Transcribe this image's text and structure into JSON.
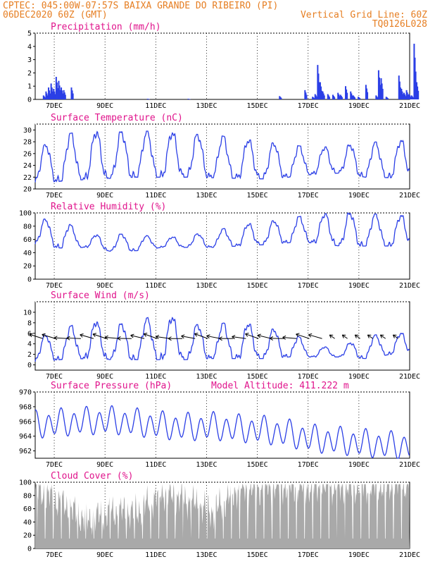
{
  "header": {
    "line1": "CPTEC:   045:00W-07:57S   BAIXA GRANDE DO RIBEIRO (PI)",
    "line2_left": "06DEC2020 60Z (GMT)",
    "line2_right": "Vertical Grid Line: 60Z",
    "line3_right": "TQ0126L028"
  },
  "colors": {
    "header": "#e67e22",
    "panel_title": "#e0148c",
    "series": "#2b3fe6",
    "cloud": "#a9a9a9",
    "grid": "#000000"
  },
  "x_axis": {
    "start": "06DEC 06Z",
    "end": "21DEC 00Z",
    "day_labels": [
      "7DEC",
      "9DEC",
      "11DEC",
      "13DEC",
      "15DEC",
      "17DEC",
      "19DEC",
      "21DEC"
    ]
  },
  "chart_data": [
    {
      "id": "precip",
      "title": "Precipitation (mm/h)",
      "type": "bar",
      "ylim": [
        0,
        5
      ],
      "yticks": [
        0,
        1,
        2,
        3,
        4,
        5
      ],
      "series": [
        {
          "values": [
            [
              0.3,
              0.3
            ],
            [
              0.4,
              0.6
            ],
            [
              0.5,
              0.9
            ],
            [
              0.6,
              1.2
            ],
            [
              0.7,
              0.8
            ],
            [
              0.8,
              1.7
            ],
            [
              0.9,
              1.4
            ],
            [
              1.0,
              0.9
            ],
            [
              1.1,
              0.7
            ],
            [
              1.4,
              0.9
            ],
            [
              4.4,
              0.05
            ],
            [
              6.0,
              0.05
            ],
            [
              9.6,
              0.25
            ],
            [
              10.6,
              0.7
            ],
            [
              10.9,
              0.2
            ],
            [
              11.0,
              0.4
            ],
            [
              11.1,
              2.6
            ],
            [
              11.2,
              1.3
            ],
            [
              11.3,
              0.6
            ],
            [
              11.5,
              0.4
            ],
            [
              11.7,
              0.35
            ],
            [
              11.9,
              0.5
            ],
            [
              12.0,
              0.35
            ],
            [
              12.2,
              1.0
            ],
            [
              12.4,
              0.6
            ],
            [
              12.5,
              0.3
            ],
            [
              12.7,
              0.2
            ],
            [
              13.0,
              1.1
            ],
            [
              13.4,
              0.3
            ],
            [
              13.5,
              2.2
            ],
            [
              13.6,
              1.6
            ],
            [
              13.8,
              0.2
            ],
            [
              14.3,
              1.8
            ],
            [
              14.4,
              0.8
            ],
            [
              14.5,
              0.5
            ],
            [
              14.6,
              0.7
            ],
            [
              14.7,
              0.4
            ],
            [
              14.8,
              0.3
            ],
            [
              14.9,
              4.2
            ],
            [
              15.0,
              1.3
            ]
          ]
        }
      ]
    },
    {
      "id": "temp",
      "title": "Surface Temperature (nC)",
      "type": "line",
      "ylim": [
        20,
        31
      ],
      "yticks": [
        20,
        22,
        24,
        26,
        28,
        30
      ],
      "daily": {
        "min": [
          21.0,
          21.3,
          21.6,
          21.8,
          22.0,
          22.0,
          22.0,
          21.9,
          21.8,
          21.7,
          22.0,
          22.5,
          22.7,
          22.0,
          21.9
        ],
        "max": [
          26.5,
          29.2,
          29.8,
          29.6,
          29.8,
          29.8,
          29.3,
          29.2,
          28.6,
          28.0,
          27.5,
          27.0,
          27.3,
          27.8,
          28.2
        ]
      }
    },
    {
      "id": "rh",
      "title": "Relative Humidity (%)",
      "type": "line",
      "ylim": [
        0,
        100
      ],
      "yticks": [
        0,
        20,
        40,
        60,
        80,
        100
      ],
      "daily": {
        "min": [
          52,
          47,
          48,
          42,
          43,
          48,
          48,
          48,
          50,
          52,
          55,
          55,
          50,
          50,
          50
        ],
        "max": [
          90,
          92,
          66,
          68,
          68,
          62,
          66,
          72,
          82,
          86,
          92,
          98,
          100,
          100,
          96
        ]
      }
    },
    {
      "id": "wind",
      "title": "Surface Wind (m/s)",
      "type": "line",
      "ylim": [
        -1,
        12
      ],
      "yticks": [
        0,
        2,
        4,
        6,
        8,
        10
      ],
      "daily": {
        "min": [
          0.5,
          1.0,
          1.2,
          1.0,
          1.0,
          1.0,
          1.0,
          1.2,
          1.2,
          1.2,
          1.5,
          1.5,
          1.5,
          1.2,
          2.0
        ],
        "max": [
          5.2,
          6.5,
          8.7,
          7.5,
          8.2,
          10.0,
          7.7,
          7.6,
          8.4,
          7.0,
          6.5,
          3.5,
          3.3,
          5.5,
          6.0
        ]
      },
      "arrows_at_height": 5,
      "arrow_times": [
        0.3,
        0.8,
        1.3,
        1.8,
        2.3,
        2.8,
        3.3,
        3.8,
        4.3,
        4.8,
        5.3,
        5.8,
        6.3,
        6.8,
        7.3,
        7.8,
        8.3,
        8.8,
        9.3,
        9.8,
        10.3,
        10.8,
        11.3,
        11.8,
        12.3,
        12.8,
        13.3,
        13.8,
        14.3
      ]
    },
    {
      "id": "pressure",
      "title": "Surface Pressure (hPa)",
      "subtitle": "Model Altitude: 411.222 m",
      "type": "line",
      "ylim": [
        961,
        970
      ],
      "yticks": [
        962,
        964,
        966,
        968,
        970
      ],
      "daily": {
        "mean": [
          965.5,
          965.8,
          966.0,
          966.1,
          965.8,
          965.4,
          965.2,
          965.3,
          965.0,
          964.8,
          964.3,
          963.6,
          963.3,
          963.0,
          962.7
        ]
      }
    },
    {
      "id": "cloud",
      "title": "Cloud Cover (%)",
      "type": "area",
      "ylim": [
        0,
        100
      ],
      "yticks": [
        0,
        20,
        40,
        60,
        80,
        100
      ],
      "daily": {
        "level": [
          88,
          70,
          42,
          55,
          55,
          85,
          72,
          55,
          90,
          92,
          95,
          93,
          92,
          94,
          96
        ]
      }
    }
  ]
}
